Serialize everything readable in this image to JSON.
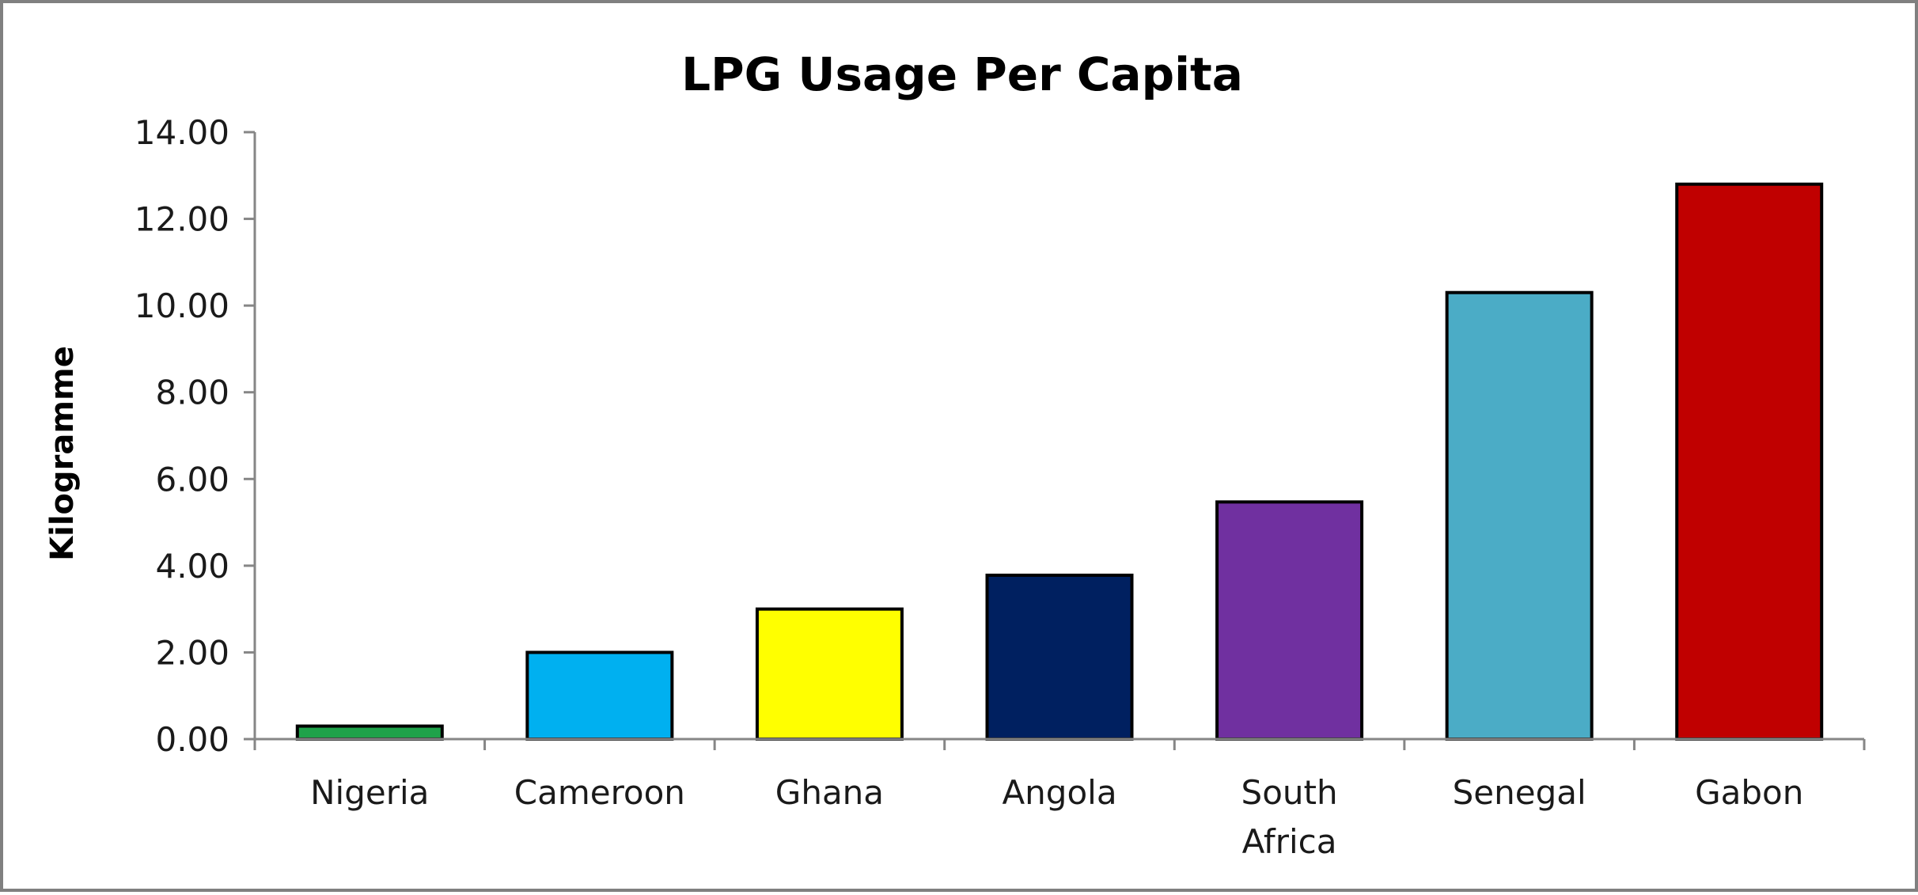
{
  "chart_data": {
    "type": "bar",
    "title": "LPG Usage Per Capita",
    "xlabel": "",
    "ylabel": "Kilogramme",
    "categories": [
      "Nigeria",
      "Cameroon",
      "Ghana",
      "Angola",
      "South Africa",
      "Senegal",
      "Gabon"
    ],
    "category_lines": [
      [
        "Nigeria"
      ],
      [
        "Cameroon"
      ],
      [
        "Ghana"
      ],
      [
        "Angola"
      ],
      [
        "South",
        "Africa"
      ],
      [
        "Senegal"
      ],
      [
        "Gabon"
      ]
    ],
    "values": [
      0.3,
      2.0,
      3.0,
      3.78,
      5.47,
      10.3,
      12.8
    ],
    "colors": [
      "#1fa24a",
      "#00b0f0",
      "#ffff00",
      "#002060",
      "#7030a0",
      "#4bacc6",
      "#c00000"
    ],
    "ylim": [
      0,
      14
    ],
    "yticks": [
      0,
      2,
      4,
      6,
      8,
      10,
      12,
      14
    ],
    "ytick_labels": [
      "0.00",
      "2.00",
      "4.00",
      "6.00",
      "8.00",
      "10.00",
      "12.00",
      "14.00"
    ],
    "grid": false,
    "legend": "none"
  }
}
